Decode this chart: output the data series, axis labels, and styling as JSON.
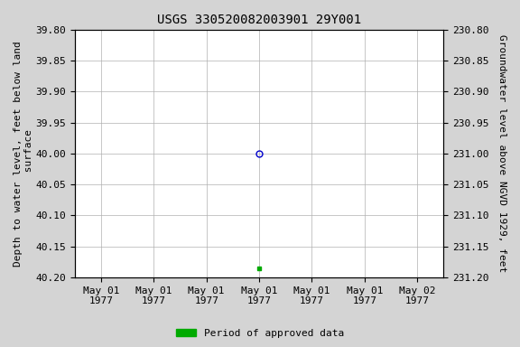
{
  "title": "USGS 330520082003901 29Y001",
  "ylabel_left": "Depth to water level, feet below land\n surface",
  "ylabel_right": "Groundwater level above NGVD 1929, feet",
  "ylim_left": [
    39.8,
    40.2
  ],
  "ylim_right": [
    231.2,
    230.8
  ],
  "yticks_left": [
    39.8,
    39.85,
    39.9,
    39.95,
    40.0,
    40.05,
    40.1,
    40.15,
    40.2
  ],
  "yticks_right": [
    231.2,
    231.15,
    231.1,
    231.05,
    231.0,
    230.95,
    230.9,
    230.85,
    230.8
  ],
  "point_open_x": 3,
  "point_open_y": 40.0,
  "point_open_color": "#0000cc",
  "point_filled_x": 3,
  "point_filled_y": 40.185,
  "point_filled_color": "#00aa00",
  "xtick_labels": [
    "May 01\n1977",
    "May 01\n1977",
    "May 01\n1977",
    "May 01\n1977",
    "May 01\n1977",
    "May 01\n1977",
    "May 02\n1977"
  ],
  "xtick_positions": [
    0,
    1,
    2,
    3,
    4,
    5,
    6
  ],
  "xlim": [
    -0.5,
    6.5
  ],
  "legend_label": "Period of approved data",
  "legend_color": "#00aa00",
  "plot_bg_color": "#ffffff",
  "fig_bg_color": "#d4d4d4",
  "grid_color": "#b0b0b0",
  "title_fontsize": 10,
  "axis_fontsize": 8,
  "tick_fontsize": 8
}
